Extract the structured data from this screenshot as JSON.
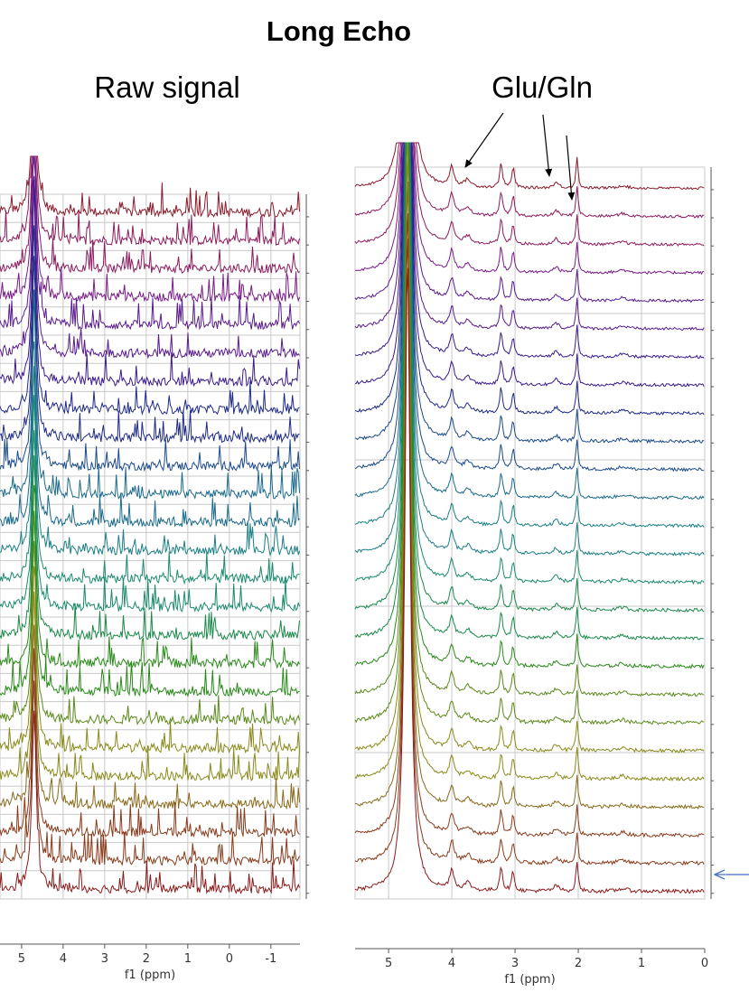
{
  "title": "Long Echo",
  "annotation": "Glu/Gln",
  "panels": [
    {
      "title": "Raw signal",
      "xlabel": "f1 (ppm)",
      "xlim": [
        5.52,
        -1.7
      ],
      "xticks": [
        5,
        4,
        3,
        2,
        1,
        0,
        -1
      ]
    },
    {
      "title": "Glu/Gln",
      "xlabel": "f1 (ppm)",
      "xlim": [
        5.53,
        0
      ],
      "xticks": [
        5,
        4,
        3,
        2,
        1,
        0
      ]
    }
  ]
}
